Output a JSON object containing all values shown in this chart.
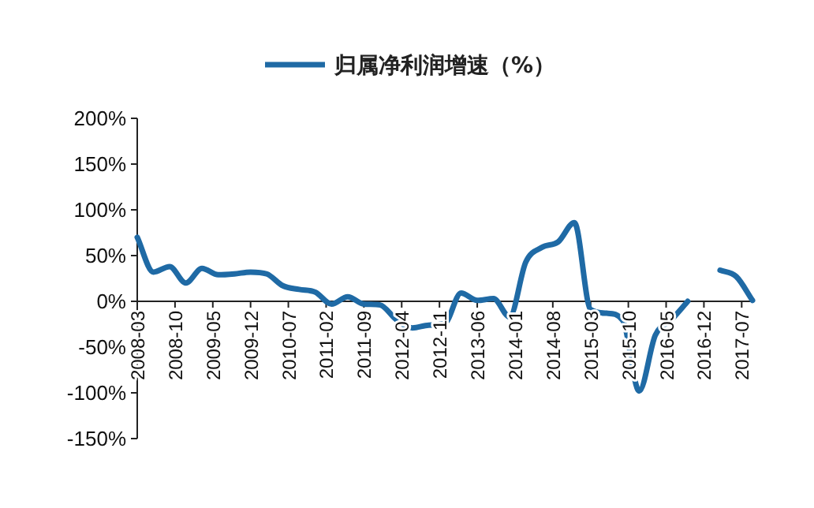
{
  "chart_data": {
    "type": "line",
    "x": [
      "2008-03",
      "2008-06",
      "2008-09",
      "2008-12",
      "2009-03",
      "2009-06",
      "2009-09",
      "2009-12",
      "2010-03",
      "2010-06",
      "2010-09",
      "2010-12",
      "2011-03",
      "2011-06",
      "2011-09",
      "2011-12",
      "2012-03",
      "2012-06",
      "2012-09",
      "2012-12",
      "2013-03",
      "2013-06",
      "2013-09",
      "2013-12",
      "2014-03",
      "2014-06",
      "2014-09",
      "2014-12",
      "2015-03",
      "2015-06",
      "2015-09",
      "2015-12",
      "2016-03",
      "2016-06",
      "2016-09",
      "2016-12",
      "2017-03",
      "2017-06",
      "2017-09"
    ],
    "series": [
      {
        "name": "归属净利润增速（%）",
        "color": "#1f6aa5",
        "values": [
          70,
          32,
          38,
          20,
          36,
          29,
          30,
          32,
          30,
          17,
          13,
          10,
          -3,
          5,
          -3,
          -4,
          -20,
          -29,
          -26,
          -24,
          9,
          1,
          3,
          -17,
          43,
          59,
          65,
          86,
          -9,
          -13,
          -21,
          -98,
          -37,
          -20,
          0,
          null,
          34,
          27,
          1
        ]
      }
    ],
    "xlim": [
      "2008-03",
      "2017-09"
    ],
    "xticks": [
      "2008-03",
      "2008-10",
      "2009-05",
      "2009-12",
      "2010-07",
      "2011-02",
      "2011-09",
      "2012-04",
      "2012-11",
      "2013-06",
      "2014-01",
      "2014-08",
      "2015-03",
      "2015-10",
      "2016-05",
      "2016-12",
      "2017-07"
    ],
    "ylim": [
      -150,
      200
    ],
    "yticks": [
      {
        "value": 200,
        "label": "200%"
      },
      {
        "value": 150,
        "label": "150%"
      },
      {
        "value": 100,
        "label": "100%"
      },
      {
        "value": 50,
        "label": "50%"
      },
      {
        "value": 0,
        "label": "0%"
      },
      {
        "value": -50,
        "label": "-50%"
      },
      {
        "value": -100,
        "label": "-100%"
      },
      {
        "value": -150,
        "label": "-150%"
      }
    ],
    "grid": false,
    "legend": "top",
    "marker": "none",
    "line_style": "solid"
  }
}
